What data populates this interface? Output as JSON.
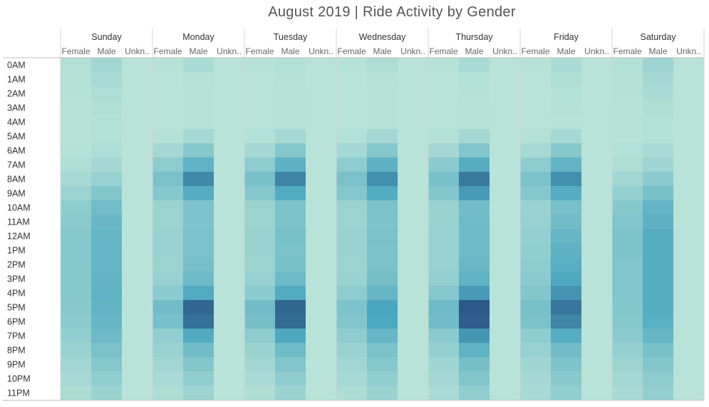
{
  "chart_data": {
    "type": "heatmap",
    "title": "August 2019 | Ride Activity by Gender",
    "days": [
      "Sunday",
      "Monday",
      "Tuesday",
      "Wednesday",
      "Thursday",
      "Friday",
      "Saturday"
    ],
    "genders": [
      "Female",
      "Male",
      "Unkn.."
    ],
    "hours": [
      "0AM",
      "1AM",
      "2AM",
      "3AM",
      "4AM",
      "5AM",
      "6AM",
      "7AM",
      "8AM",
      "9AM",
      "10AM",
      "11AM",
      "12AM",
      "1PM",
      "2PM",
      "3PM",
      "4PM",
      "5PM",
      "6PM",
      "7PM",
      "8PM",
      "9PM",
      "10PM",
      "11PM"
    ],
    "color_scale": {
      "low": "#b9e3d8",
      "mid": "#4ca8c0",
      "high": "#2b5585"
    },
    "values": [
      [
        [
          0.03,
          0.12,
          0
        ],
        [
          0.01,
          0.07,
          0
        ],
        [
          0.01,
          0.03,
          0
        ],
        [
          0.01,
          0.06,
          0
        ],
        [
          0.01,
          0.08,
          0
        ],
        [
          0.01,
          0.07,
          0
        ],
        [
          0.03,
          0.14,
          0
        ]
      ],
      [
        [
          0.02,
          0.08,
          0
        ],
        [
          0.0,
          0.02,
          0
        ],
        [
          0.0,
          0.02,
          0
        ],
        [
          0.0,
          0.02,
          0
        ],
        [
          0.0,
          0.03,
          0
        ],
        [
          0.0,
          0.05,
          0
        ],
        [
          0.02,
          0.1,
          0
        ]
      ],
      [
        [
          0.02,
          0.06,
          0
        ],
        [
          0.0,
          0.01,
          0
        ],
        [
          0.0,
          0.01,
          0
        ],
        [
          0.0,
          0.01,
          0
        ],
        [
          0.0,
          0.02,
          0
        ],
        [
          0.0,
          0.03,
          0
        ],
        [
          0.02,
          0.07,
          0
        ]
      ],
      [
        [
          0.01,
          0.04,
          0
        ],
        [
          0.0,
          0.01,
          0
        ],
        [
          0.0,
          0.01,
          0
        ],
        [
          0.0,
          0.01,
          0
        ],
        [
          0.0,
          0.01,
          0
        ],
        [
          0.0,
          0.02,
          0
        ],
        [
          0.01,
          0.05,
          0
        ]
      ],
      [
        [
          0.01,
          0.03,
          0
        ],
        [
          0.0,
          0.01,
          0
        ],
        [
          0.0,
          0.01,
          0
        ],
        [
          0.0,
          0.01,
          0
        ],
        [
          0.0,
          0.01,
          0
        ],
        [
          0.0,
          0.01,
          0
        ],
        [
          0.01,
          0.03,
          0
        ]
      ],
      [
        [
          0.01,
          0.03,
          0
        ],
        [
          0.03,
          0.09,
          0
        ],
        [
          0.03,
          0.09,
          0
        ],
        [
          0.03,
          0.1,
          0
        ],
        [
          0.03,
          0.1,
          0
        ],
        [
          0.03,
          0.09,
          0
        ],
        [
          0.01,
          0.03,
          0
        ]
      ],
      [
        [
          0.02,
          0.06,
          0
        ],
        [
          0.1,
          0.25,
          0
        ],
        [
          0.1,
          0.26,
          0
        ],
        [
          0.1,
          0.26,
          0
        ],
        [
          0.1,
          0.28,
          0
        ],
        [
          0.09,
          0.25,
          0
        ],
        [
          0.03,
          0.08,
          0
        ]
      ],
      [
        [
          0.05,
          0.1,
          0
        ],
        [
          0.22,
          0.45,
          0
        ],
        [
          0.22,
          0.46,
          0
        ],
        [
          0.22,
          0.46,
          0
        ],
        [
          0.23,
          0.5,
          0
        ],
        [
          0.21,
          0.44,
          0
        ],
        [
          0.06,
          0.13,
          0
        ]
      ],
      [
        [
          0.09,
          0.17,
          0
        ],
        [
          0.32,
          0.72,
          0
        ],
        [
          0.33,
          0.74,
          0
        ],
        [
          0.32,
          0.68,
          0
        ],
        [
          0.33,
          0.8,
          0
        ],
        [
          0.31,
          0.68,
          0
        ],
        [
          0.12,
          0.23,
          0
        ]
      ],
      [
        [
          0.15,
          0.27,
          0
        ],
        [
          0.25,
          0.5,
          0
        ],
        [
          0.26,
          0.52,
          0
        ],
        [
          0.26,
          0.51,
          0
        ],
        [
          0.27,
          0.62,
          0
        ],
        [
          0.25,
          0.5,
          0
        ],
        [
          0.18,
          0.33,
          0
        ]
      ],
      [
        [
          0.21,
          0.36,
          0
        ],
        [
          0.15,
          0.3,
          0
        ],
        [
          0.15,
          0.3,
          0
        ],
        [
          0.15,
          0.31,
          0
        ],
        [
          0.16,
          0.36,
          0
        ],
        [
          0.16,
          0.33,
          0
        ],
        [
          0.25,
          0.43,
          0
        ]
      ],
      [
        [
          0.23,
          0.4,
          0
        ],
        [
          0.15,
          0.3,
          0
        ],
        [
          0.15,
          0.3,
          0
        ],
        [
          0.15,
          0.3,
          0
        ],
        [
          0.16,
          0.37,
          0
        ],
        [
          0.17,
          0.36,
          0
        ],
        [
          0.28,
          0.47,
          0
        ]
      ],
      [
        [
          0.25,
          0.42,
          0
        ],
        [
          0.16,
          0.32,
          0
        ],
        [
          0.16,
          0.33,
          0
        ],
        [
          0.16,
          0.32,
          0
        ],
        [
          0.17,
          0.38,
          0
        ],
        [
          0.19,
          0.42,
          0
        ],
        [
          0.29,
          0.5,
          0
        ]
      ],
      [
        [
          0.26,
          0.43,
          0
        ],
        [
          0.16,
          0.32,
          0
        ],
        [
          0.16,
          0.32,
          0
        ],
        [
          0.16,
          0.31,
          0
        ],
        [
          0.17,
          0.38,
          0
        ],
        [
          0.2,
          0.46,
          0
        ],
        [
          0.29,
          0.5,
          0
        ]
      ],
      [
        [
          0.25,
          0.43,
          0
        ],
        [
          0.15,
          0.34,
          0
        ],
        [
          0.15,
          0.33,
          0
        ],
        [
          0.15,
          0.31,
          0
        ],
        [
          0.17,
          0.4,
          0
        ],
        [
          0.21,
          0.49,
          0
        ],
        [
          0.28,
          0.5,
          0
        ]
      ],
      [
        [
          0.25,
          0.44,
          0
        ],
        [
          0.17,
          0.38,
          0
        ],
        [
          0.17,
          0.38,
          0
        ],
        [
          0.16,
          0.34,
          0
        ],
        [
          0.19,
          0.45,
          0
        ],
        [
          0.23,
          0.54,
          0
        ],
        [
          0.28,
          0.5,
          0
        ]
      ],
      [
        [
          0.25,
          0.45,
          0
        ],
        [
          0.23,
          0.52,
          0
        ],
        [
          0.23,
          0.52,
          0
        ],
        [
          0.21,
          0.42,
          0
        ],
        [
          0.26,
          0.62,
          0
        ],
        [
          0.27,
          0.66,
          0
        ],
        [
          0.28,
          0.5,
          0
        ]
      ],
      [
        [
          0.24,
          0.44,
          0
        ],
        [
          0.36,
          0.9,
          0
        ],
        [
          0.36,
          0.9,
          0
        ],
        [
          0.3,
          0.56,
          0
        ],
        [
          0.38,
          0.98,
          0
        ],
        [
          0.33,
          0.82,
          0
        ],
        [
          0.27,
          0.5,
          0
        ]
      ],
      [
        [
          0.23,
          0.42,
          0
        ],
        [
          0.33,
          0.85,
          0
        ],
        [
          0.34,
          0.88,
          0
        ],
        [
          0.28,
          0.55,
          0
        ],
        [
          0.36,
          0.95,
          0
        ],
        [
          0.31,
          0.74,
          0
        ],
        [
          0.26,
          0.48,
          0
        ]
      ],
      [
        [
          0.2,
          0.38,
          0
        ],
        [
          0.2,
          0.52,
          0
        ],
        [
          0.21,
          0.54,
          0
        ],
        [
          0.21,
          0.42,
          0
        ],
        [
          0.23,
          0.64,
          0
        ],
        [
          0.21,
          0.5,
          0
        ],
        [
          0.23,
          0.42,
          0
        ]
      ],
      [
        [
          0.16,
          0.32,
          0
        ],
        [
          0.16,
          0.36,
          0
        ],
        [
          0.16,
          0.37,
          0
        ],
        [
          0.16,
          0.32,
          0
        ],
        [
          0.18,
          0.45,
          0
        ],
        [
          0.17,
          0.36,
          0
        ],
        [
          0.18,
          0.33,
          0
        ]
      ],
      [
        [
          0.12,
          0.26,
          0
        ],
        [
          0.12,
          0.27,
          0
        ],
        [
          0.12,
          0.28,
          0
        ],
        [
          0.12,
          0.26,
          0
        ],
        [
          0.13,
          0.34,
          0
        ],
        [
          0.13,
          0.29,
          0
        ],
        [
          0.14,
          0.27,
          0
        ]
      ],
      [
        [
          0.09,
          0.2,
          0
        ],
        [
          0.08,
          0.2,
          0
        ],
        [
          0.08,
          0.21,
          0
        ],
        [
          0.09,
          0.2,
          0
        ],
        [
          0.1,
          0.27,
          0
        ],
        [
          0.1,
          0.24,
          0
        ],
        [
          0.11,
          0.22,
          0
        ]
      ],
      [
        [
          0.06,
          0.15,
          0
        ],
        [
          0.05,
          0.14,
          0
        ],
        [
          0.05,
          0.15,
          0
        ],
        [
          0.06,
          0.15,
          0
        ],
        [
          0.07,
          0.2,
          0
        ],
        [
          0.08,
          0.2,
          0
        ],
        [
          0.08,
          0.19,
          0
        ]
      ]
    ]
  }
}
